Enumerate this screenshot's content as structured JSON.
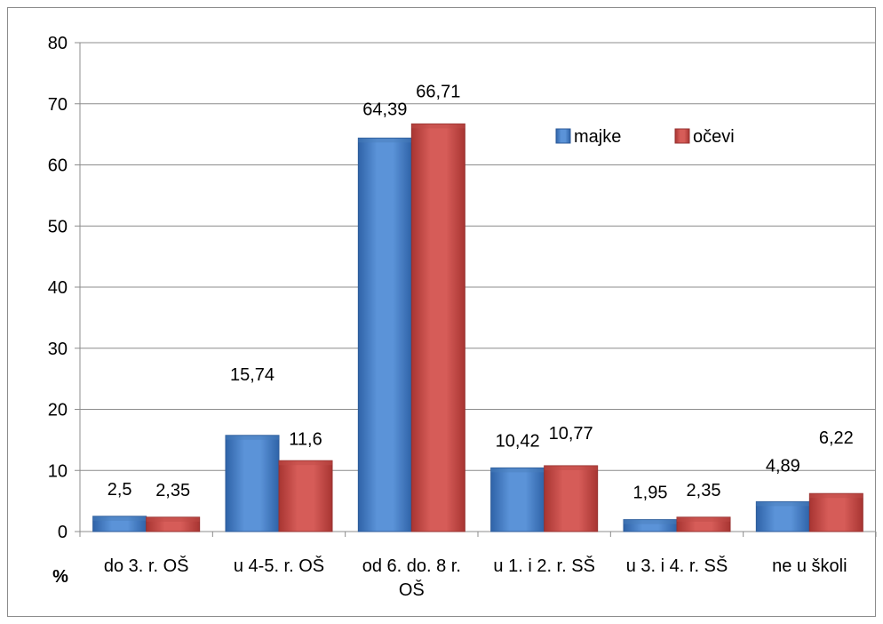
{
  "chart_data": {
    "type": "bar",
    "categories": [
      [
        "do 3. r. OŠ"
      ],
      [
        "u 4-5. r. OŠ"
      ],
      [
        "od 6. do. 8 r.",
        "OŠ"
      ],
      [
        "u 1. i 2. r. SŠ"
      ],
      [
        "u 3. i 4. r. SŠ"
      ],
      [
        "ne u školi"
      ]
    ],
    "series": [
      {
        "name": "majke",
        "values": [
          2.5,
          15.74,
          64.39,
          10.42,
          1.95,
          4.89
        ],
        "labels": [
          "2,5",
          "15,74",
          "64,39",
          "10,42",
          "1,95",
          "4,89"
        ],
        "color": "#4a7ebb"
      },
      {
        "name": "očevi",
        "values": [
          2.35,
          11.6,
          66.71,
          10.77,
          2.35,
          6.22
        ],
        "labels": [
          "2,35",
          "11,6",
          "66,71",
          "10,77",
          "2,35",
          "6,22"
        ],
        "color": "#be4b48"
      }
    ],
    "ylabel": "%",
    "ylim": [
      0,
      80
    ],
    "yticks": [
      0,
      10,
      20,
      30,
      40,
      50,
      60,
      70,
      80
    ],
    "grid": true,
    "legend": "top-right"
  }
}
